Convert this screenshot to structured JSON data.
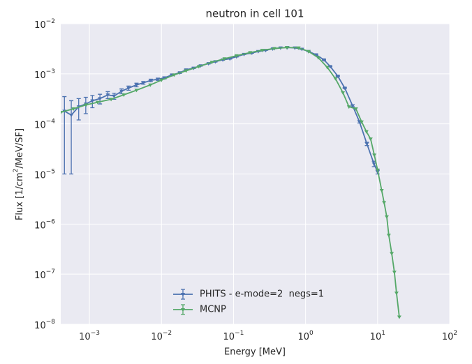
{
  "chart_data": {
    "type": "errorbar",
    "title": "neutron in cell 101",
    "x_label": "Energy [MeV]",
    "y_label": "Flux [1/cm2/MeV/SF]",
    "y_label_superscript": "2",
    "x_scale": "log",
    "y_scale": "log",
    "grid": true,
    "legend_position": "lower center",
    "xlim": [
      0.0004,
      100
    ],
    "ylim": [
      1e-08,
      0.01
    ],
    "xticks": [
      {
        "value": 0.001,
        "label": "10−3"
      },
      {
        "value": 0.01,
        "label": "10−2"
      },
      {
        "value": 0.1,
        "label": "10−1"
      },
      {
        "value": 1,
        "label": "100"
      },
      {
        "value": 10,
        "label": "101"
      },
      {
        "value": 100,
        "label": "102"
      }
    ],
    "yticks": [
      {
        "value": 1e-08,
        "label": "10−8"
      },
      {
        "value": 1e-07,
        "label": "10−7"
      },
      {
        "value": 1e-06,
        "label": "10−6"
      },
      {
        "value": 1e-05,
        "label": "10−5"
      },
      {
        "value": 0.0001,
        "label": "10−4"
      },
      {
        "value": 0.001,
        "label": "10−3"
      },
      {
        "value": 0.01,
        "label": "10−2"
      }
    ],
    "series": [
      {
        "name": "PHITS - e-mode=2  negs=1",
        "color": "#4c72b0",
        "x": [
          0.00045,
          0.00056,
          0.00071,
          0.00089,
          0.0011,
          0.0014,
          0.0018,
          0.0022,
          0.0028,
          0.0035,
          0.0045,
          0.0056,
          0.0071,
          0.0089,
          0.011,
          0.014,
          0.018,
          0.022,
          0.028,
          0.035,
          0.045,
          0.056,
          0.071,
          0.089,
          0.11,
          0.14,
          0.18,
          0.22,
          0.28,
          0.35,
          0.45,
          0.56,
          0.71,
          0.89,
          1.1,
          1.4,
          1.8,
          2.2,
          2.8,
          3.5,
          4.5,
          5.6,
          7.1,
          8.9,
          10
        ],
        "values": [
          0.00018,
          0.00015,
          0.00022,
          0.00025,
          0.00029,
          0.00032,
          0.00038,
          0.00036,
          0.00045,
          0.00052,
          0.0006,
          0.00066,
          0.00074,
          0.00078,
          0.00083,
          0.00095,
          0.00105,
          0.0012,
          0.0013,
          0.00145,
          0.0016,
          0.00175,
          0.0019,
          0.002,
          0.0022,
          0.00245,
          0.0026,
          0.0028,
          0.00295,
          0.00315,
          0.0033,
          0.00335,
          0.0033,
          0.0031,
          0.0028,
          0.0024,
          0.0019,
          0.0014,
          0.0009,
          0.00052,
          0.00023,
          0.00011,
          4e-05,
          1.6e-05,
          1.1e-05
        ],
        "errors": [
          0.00017,
          0.00014,
          0.0001,
          9e-05,
          8e-05,
          7e-05,
          6e-05,
          5e-05,
          5e-05,
          5e-05,
          5e-05,
          4e-05,
          4e-05,
          4e-05,
          4e-05,
          3e-05,
          3e-05,
          3e-05,
          3e-05,
          3e-05,
          3e-05,
          3e-05,
          3e-05,
          3e-05,
          3e-05,
          3e-05,
          3e-05,
          3e-05,
          3e-05,
          3e-05,
          3e-05,
          3e-05,
          3e-05,
          3e-05,
          3e-05,
          3e-05,
          3e-05,
          2e-05,
          2e-05,
          1e-05,
          1e-05,
          6e-06,
          3e-06,
          2e-06,
          1e-06
        ]
      },
      {
        "name": "MCNP",
        "color": "#55a868",
        "x": [
          0.0004,
          0.0006,
          0.0009,
          0.0013,
          0.002,
          0.003,
          0.0045,
          0.007,
          0.01,
          0.015,
          0.022,
          0.033,
          0.05,
          0.075,
          0.11,
          0.17,
          0.25,
          0.37,
          0.55,
          0.8,
          1.1,
          1.5,
          2,
          2.6,
          3.3,
          4,
          5,
          6,
          7,
          8,
          9,
          10,
          11.4,
          12.3,
          13.4,
          14.3,
          15.7,
          17.1,
          18.3,
          20
        ],
        "values": [
          0.00017,
          0.0002,
          0.00024,
          0.00027,
          0.00031,
          0.00038,
          0.00047,
          0.0006,
          0.00075,
          0.00095,
          0.00115,
          0.0014,
          0.0017,
          0.002,
          0.0023,
          0.00265,
          0.00295,
          0.0032,
          0.00335,
          0.0033,
          0.0028,
          0.0021,
          0.00135,
          0.0008,
          0.00042,
          0.00022,
          0.0002,
          0.00011,
          7e-05,
          5e-05,
          2.4e-05,
          1.2e-05,
          4.7e-06,
          2.7e-06,
          1.4e-06,
          6e-07,
          2.6e-07,
          1.1e-07,
          4.2e-08,
          1.4e-08
        ]
      }
    ]
  }
}
